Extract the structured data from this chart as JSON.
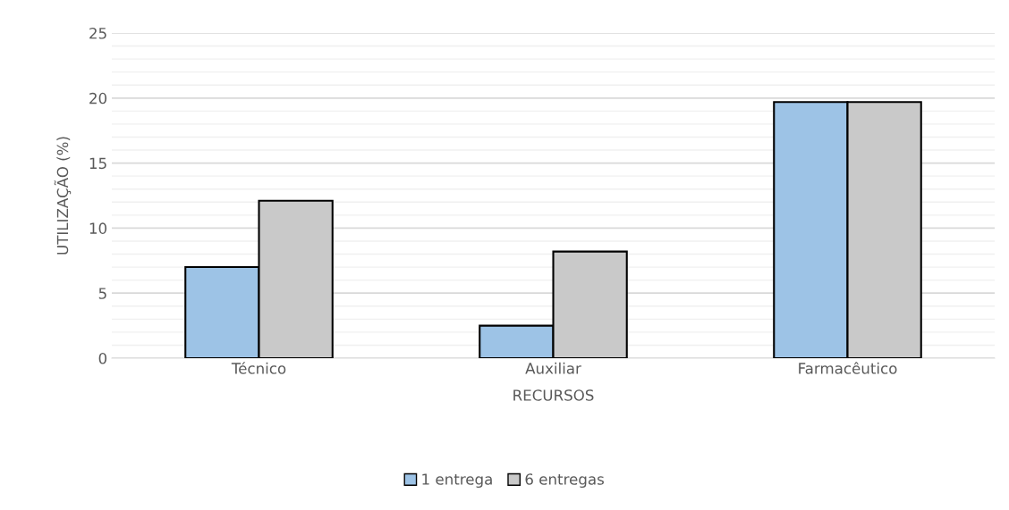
{
  "chart_data": {
    "type": "bar",
    "xlabel": "RECURSOS",
    "ylabel": "UTILIZAÇÃO (%)",
    "categories": [
      "Técnico",
      "Auxiliar",
      "Farmacêutico"
    ],
    "series": [
      {
        "name": "1 entrega",
        "color": "#9dc3e6",
        "values": [
          7.0,
          2.5,
          19.7
        ]
      },
      {
        "name": "6 entregas",
        "color": "#c9c9c9",
        "values": [
          12.1,
          8.2,
          19.7
        ]
      }
    ],
    "ylim": [
      0,
      25
    ],
    "yticks": [
      0,
      5,
      10,
      15,
      20,
      25
    ],
    "grid": "y",
    "legend": "bottom"
  }
}
